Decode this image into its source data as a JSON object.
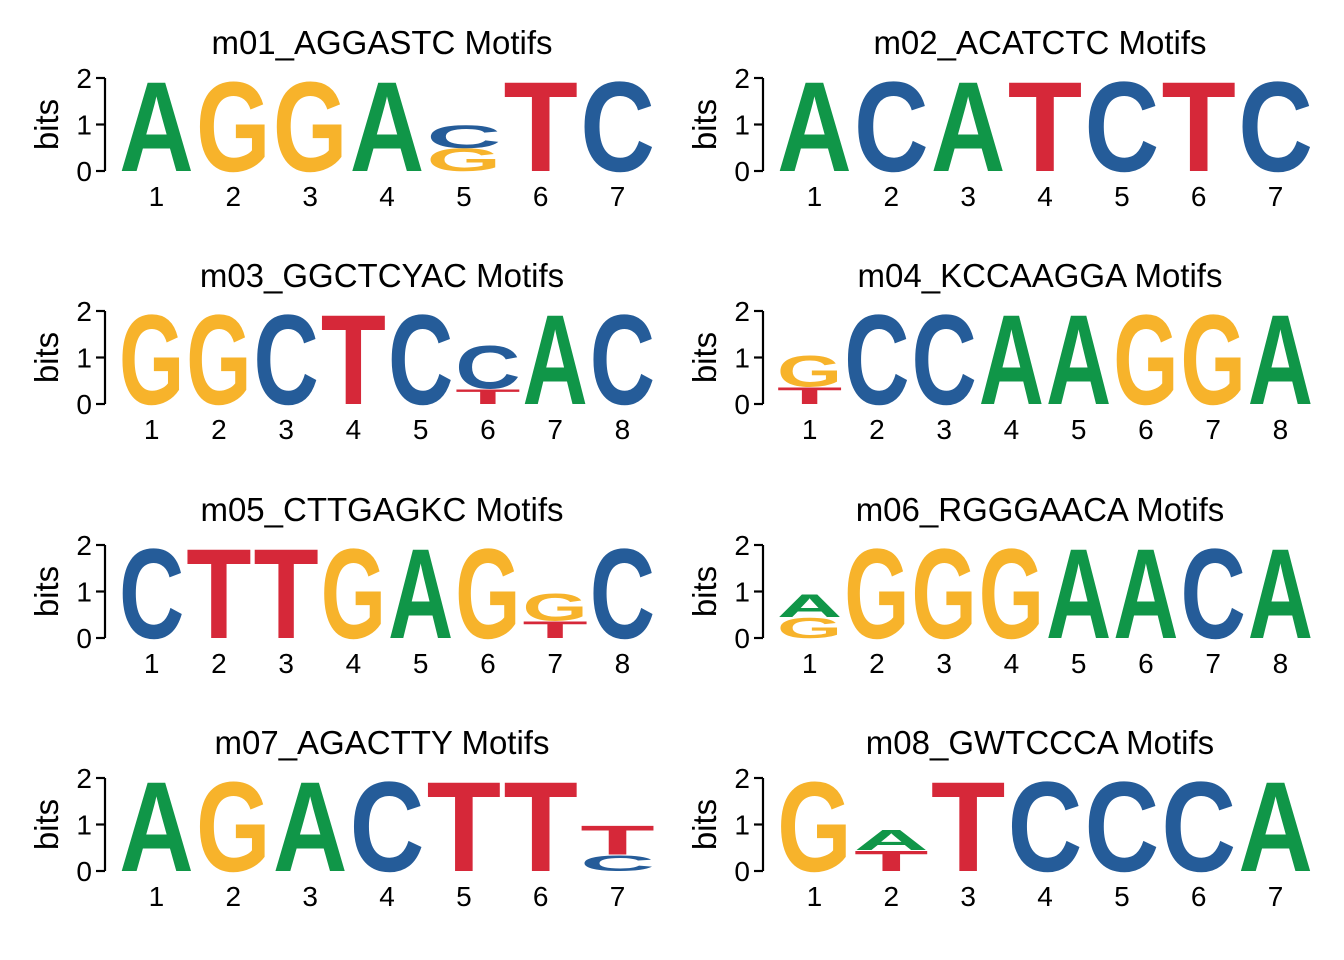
{
  "colors": {
    "A": "#109648",
    "C": "#255C99",
    "G": "#F7B32B",
    "T": "#D62839",
    "axis": "#000000"
  },
  "chart_data": [
    {
      "type": "sequence-logo",
      "title": "m01_AGGASTC Motifs",
      "ylabel": "bits",
      "ylim": [
        0,
        2
      ],
      "yticks": [
        "0",
        "1",
        "2"
      ],
      "positions": [
        "1",
        "2",
        "3",
        "4",
        "5",
        "6",
        "7"
      ],
      "stacks": [
        [
          {
            "letter": "A",
            "bits": 2.0
          }
        ],
        [
          {
            "letter": "G",
            "bits": 2.0
          }
        ],
        [
          {
            "letter": "G",
            "bits": 2.0
          }
        ],
        [
          {
            "letter": "A",
            "bits": 2.0
          }
        ],
        [
          {
            "letter": "G",
            "bits": 0.5
          },
          {
            "letter": "C",
            "bits": 0.5
          }
        ],
        [
          {
            "letter": "T",
            "bits": 2.0
          }
        ],
        [
          {
            "letter": "C",
            "bits": 2.0
          }
        ]
      ]
    },
    {
      "type": "sequence-logo",
      "title": "m02_ACATCTC Motifs",
      "ylabel": "bits",
      "ylim": [
        0,
        2
      ],
      "yticks": [
        "0",
        "1",
        "2"
      ],
      "positions": [
        "1",
        "2",
        "3",
        "4",
        "5",
        "6",
        "7"
      ],
      "stacks": [
        [
          {
            "letter": "A",
            "bits": 2.0
          }
        ],
        [
          {
            "letter": "C",
            "bits": 2.0
          }
        ],
        [
          {
            "letter": "A",
            "bits": 2.0
          }
        ],
        [
          {
            "letter": "T",
            "bits": 2.0
          }
        ],
        [
          {
            "letter": "C",
            "bits": 2.0
          }
        ],
        [
          {
            "letter": "T",
            "bits": 2.0
          }
        ],
        [
          {
            "letter": "C",
            "bits": 2.0
          }
        ]
      ]
    },
    {
      "type": "sequence-logo",
      "title": "m03_GGCTCYAC Motifs",
      "ylabel": "bits",
      "ylim": [
        0,
        2
      ],
      "yticks": [
        "0",
        "1",
        "2"
      ],
      "positions": [
        "1",
        "2",
        "3",
        "4",
        "5",
        "6",
        "7",
        "8"
      ],
      "stacks": [
        [
          {
            "letter": "G",
            "bits": 2.0
          }
        ],
        [
          {
            "letter": "G",
            "bits": 2.0
          }
        ],
        [
          {
            "letter": "C",
            "bits": 2.0
          }
        ],
        [
          {
            "letter": "T",
            "bits": 2.0
          }
        ],
        [
          {
            "letter": "C",
            "bits": 2.0
          }
        ],
        [
          {
            "letter": "T",
            "bits": 0.33
          },
          {
            "letter": "C",
            "bits": 0.95
          }
        ],
        [
          {
            "letter": "A",
            "bits": 2.0
          }
        ],
        [
          {
            "letter": "C",
            "bits": 2.0
          }
        ]
      ]
    },
    {
      "type": "sequence-logo",
      "title": "m04_KCCAAGGA Motifs",
      "ylabel": "bits",
      "ylim": [
        0,
        2
      ],
      "yticks": [
        "0",
        "1",
        "2"
      ],
      "positions": [
        "1",
        "2",
        "3",
        "4",
        "5",
        "6",
        "7",
        "8"
      ],
      "stacks": [
        [
          {
            "letter": "T",
            "bits": 0.38
          },
          {
            "letter": "G",
            "bits": 0.7
          }
        ],
        [
          {
            "letter": "C",
            "bits": 2.0
          }
        ],
        [
          {
            "letter": "C",
            "bits": 2.0
          }
        ],
        [
          {
            "letter": "A",
            "bits": 2.0
          }
        ],
        [
          {
            "letter": "A",
            "bits": 2.0
          }
        ],
        [
          {
            "letter": "G",
            "bits": 2.0
          }
        ],
        [
          {
            "letter": "G",
            "bits": 2.0
          }
        ],
        [
          {
            "letter": "A",
            "bits": 2.0
          }
        ]
      ]
    },
    {
      "type": "sequence-logo",
      "title": "m05_CTTGAGKC Motifs",
      "ylabel": "bits",
      "ylim": [
        0,
        2
      ],
      "yticks": [
        "0",
        "1",
        "2"
      ],
      "positions": [
        "1",
        "2",
        "3",
        "4",
        "5",
        "6",
        "7",
        "8"
      ],
      "stacks": [
        [
          {
            "letter": "C",
            "bits": 2.0
          }
        ],
        [
          {
            "letter": "T",
            "bits": 2.0
          }
        ],
        [
          {
            "letter": "T",
            "bits": 2.0
          }
        ],
        [
          {
            "letter": "G",
            "bits": 2.0
          }
        ],
        [
          {
            "letter": "A",
            "bits": 2.0
          }
        ],
        [
          {
            "letter": "G",
            "bits": 2.0
          }
        ],
        [
          {
            "letter": "T",
            "bits": 0.38
          },
          {
            "letter": "G",
            "bits": 0.6
          }
        ],
        [
          {
            "letter": "C",
            "bits": 2.0
          }
        ]
      ]
    },
    {
      "type": "sequence-logo",
      "title": "m06_RGGGAACA Motifs",
      "ylabel": "bits",
      "ylim": [
        0,
        2
      ],
      "yticks": [
        "0",
        "1",
        "2"
      ],
      "positions": [
        "1",
        "2",
        "3",
        "4",
        "5",
        "6",
        "7",
        "8"
      ],
      "stacks": [
        [
          {
            "letter": "G",
            "bits": 0.45
          },
          {
            "letter": "A",
            "bits": 0.5
          }
        ],
        [
          {
            "letter": "G",
            "bits": 2.0
          }
        ],
        [
          {
            "letter": "G",
            "bits": 2.0
          }
        ],
        [
          {
            "letter": "G",
            "bits": 2.0
          }
        ],
        [
          {
            "letter": "A",
            "bits": 2.0
          }
        ],
        [
          {
            "letter": "A",
            "bits": 2.0
          }
        ],
        [
          {
            "letter": "C",
            "bits": 2.0
          }
        ],
        [
          {
            "letter": "A",
            "bits": 2.0
          }
        ]
      ]
    },
    {
      "type": "sequence-logo",
      "title": "m07_AGACTTY Motifs",
      "ylabel": "bits",
      "ylim": [
        0,
        2
      ],
      "yticks": [
        "0",
        "1",
        "2"
      ],
      "positions": [
        "1",
        "2",
        "3",
        "4",
        "5",
        "6",
        "7"
      ],
      "stacks": [
        [
          {
            "letter": "A",
            "bits": 2.0
          }
        ],
        [
          {
            "letter": "G",
            "bits": 2.0
          }
        ],
        [
          {
            "letter": "A",
            "bits": 2.0
          }
        ],
        [
          {
            "letter": "C",
            "bits": 2.0
          }
        ],
        [
          {
            "letter": "T",
            "bits": 2.0
          }
        ],
        [
          {
            "letter": "T",
            "bits": 2.0
          }
        ],
        [
          {
            "letter": "C",
            "bits": 0.35
          },
          {
            "letter": "T",
            "bits": 0.65
          }
        ]
      ]
    },
    {
      "type": "sequence-logo",
      "title": "m08_GWTCCCA Motifs",
      "ylabel": "bits",
      "ylim": [
        0,
        2
      ],
      "yticks": [
        "0",
        "1",
        "2"
      ],
      "positions": [
        "1",
        "2",
        "3",
        "4",
        "5",
        "6",
        "7"
      ],
      "stacks": [
        [
          {
            "letter": "G",
            "bits": 2.0
          }
        ],
        [
          {
            "letter": "T",
            "bits": 0.45
          },
          {
            "letter": "A",
            "bits": 0.45
          }
        ],
        [
          {
            "letter": "T",
            "bits": 2.0
          }
        ],
        [
          {
            "letter": "C",
            "bits": 2.0
          }
        ],
        [
          {
            "letter": "C",
            "bits": 2.0
          }
        ],
        [
          {
            "letter": "C",
            "bits": 2.0
          }
        ],
        [
          {
            "letter": "A",
            "bits": 2.0
          }
        ]
      ]
    }
  ]
}
